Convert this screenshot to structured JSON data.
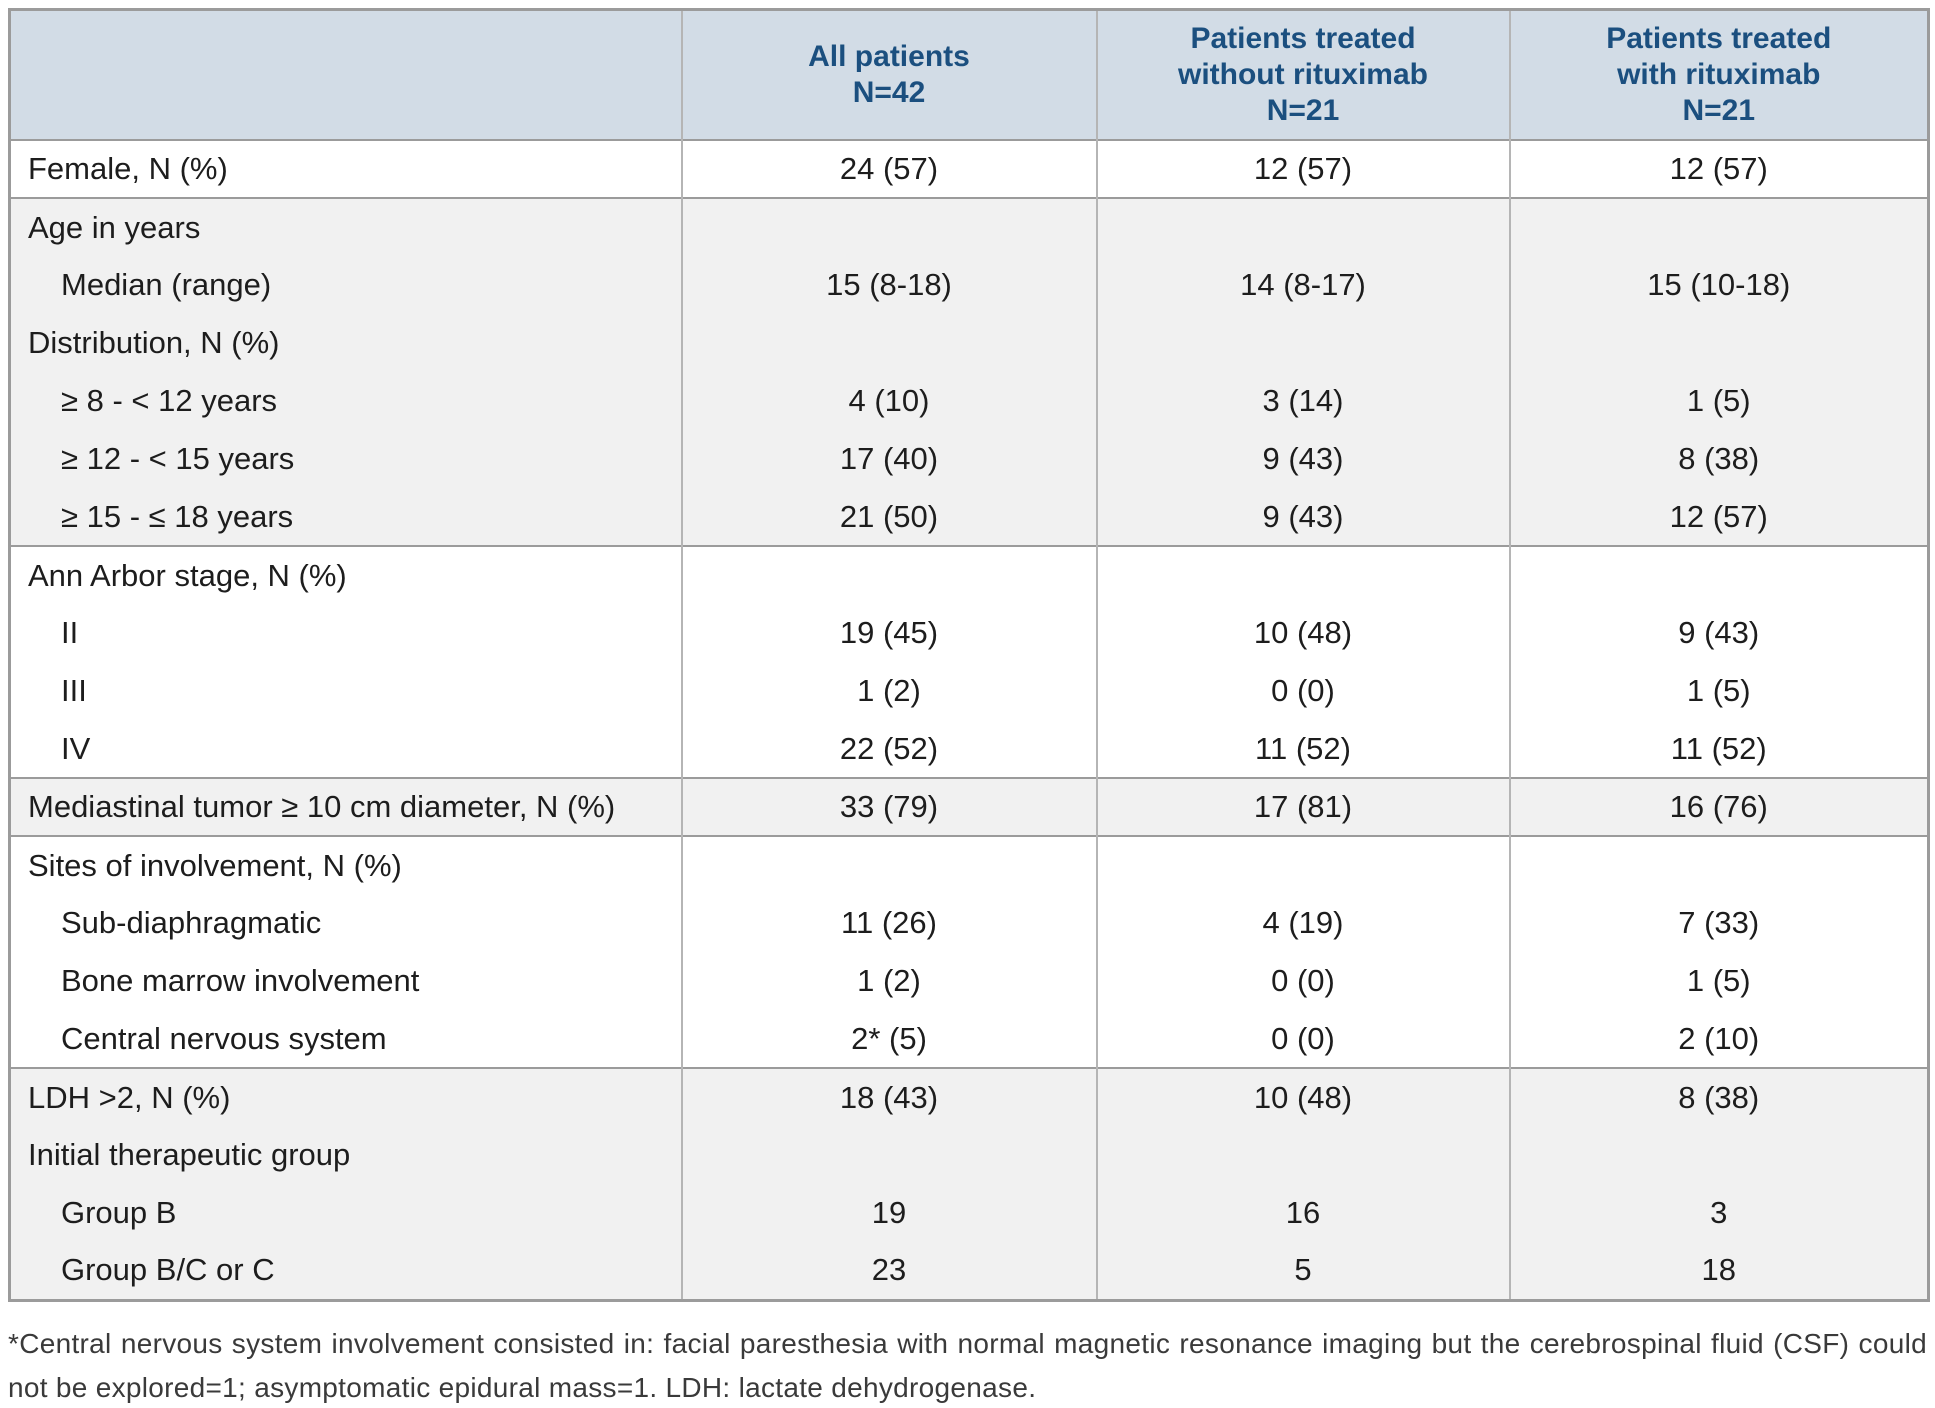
{
  "colors": {
    "header_bg": "#d2dce6",
    "header_text": "#1b4f7f",
    "row_alt_bg": "#f1f1f1",
    "section_border": "#9b9b9b",
    "column_border": "#b5b5b5"
  },
  "table": {
    "columns": [
      {
        "lines": []
      },
      {
        "lines": [
          "All patients",
          "N=42"
        ]
      },
      {
        "lines": [
          "Patients treated",
          "without rituximab",
          "N=21"
        ]
      },
      {
        "lines": [
          "Patients treated",
          "with rituximab",
          "N=21"
        ]
      }
    ],
    "sections": [
      {
        "bg": "white",
        "rows": [
          {
            "label": "Female, N (%)",
            "indent": 0,
            "values": [
              "24 (57)",
              "12 (57)",
              "12 (57)"
            ]
          }
        ]
      },
      {
        "bg": "gray",
        "rows": [
          {
            "label": "Age in years",
            "indent": 0,
            "values": [
              "",
              "",
              ""
            ]
          },
          {
            "label": "Median (range)",
            "indent": 1,
            "values": [
              "15 (8-18)",
              "14 (8-17)",
              "15 (10-18)"
            ]
          },
          {
            "label": "Distribution, N (%)",
            "indent": 0,
            "values": [
              "",
              "",
              ""
            ]
          },
          {
            "label": "≥ 8 - < 12 years",
            "indent": 1,
            "values": [
              "4 (10)",
              "3 (14)",
              "1 (5)"
            ]
          },
          {
            "label": "≥ 12 - < 15 years",
            "indent": 1,
            "values": [
              "17 (40)",
              "9 (43)",
              "8 (38)"
            ]
          },
          {
            "label": "≥ 15 - ≤ 18 years",
            "indent": 1,
            "values": [
              "21 (50)",
              "9 (43)",
              "12 (57)"
            ]
          }
        ]
      },
      {
        "bg": "white",
        "rows": [
          {
            "label": "Ann Arbor stage, N (%)",
            "indent": 0,
            "values": [
              "",
              "",
              ""
            ]
          },
          {
            "label": "II",
            "indent": 1,
            "values": [
              "19 (45)",
              "10 (48)",
              "9 (43)"
            ]
          },
          {
            "label": "III",
            "indent": 1,
            "values": [
              "1 (2)",
              "0 (0)",
              "1 (5)"
            ]
          },
          {
            "label": "IV",
            "indent": 1,
            "values": [
              "22 (52)",
              "11 (52)",
              "11 (52)"
            ]
          }
        ]
      },
      {
        "bg": "gray",
        "rows": [
          {
            "label": "Mediastinal tumor ≥ 10 cm diameter, N (%)",
            "indent": 0,
            "values": [
              "33 (79)",
              "17 (81)",
              "16 (76)"
            ]
          }
        ]
      },
      {
        "bg": "white",
        "rows": [
          {
            "label": "Sites of involvement, N (%)",
            "indent": 0,
            "values": [
              "",
              "",
              ""
            ]
          },
          {
            "label": "Sub-diaphragmatic",
            "indent": 1,
            "values": [
              "11 (26)",
              "4 (19)",
              "7 (33)"
            ]
          },
          {
            "label": "Bone marrow involvement",
            "indent": 1,
            "values": [
              "1 (2)",
              "0 (0)",
              "1 (5)"
            ]
          },
          {
            "label": "Central nervous system",
            "indent": 1,
            "values": [
              "2* (5)",
              "0 (0)",
              "2 (10)"
            ]
          }
        ]
      },
      {
        "bg": "gray",
        "rows": [
          {
            "label": "LDH >2, N (%)",
            "indent": 0,
            "values": [
              "18 (43)",
              "10 (48)",
              "8 (38)"
            ]
          },
          {
            "label": "Initial therapeutic group",
            "indent": 0,
            "values": [
              "",
              "",
              ""
            ]
          },
          {
            "label": "Group B",
            "indent": 1,
            "values": [
              "19",
              "16",
              "3"
            ]
          },
          {
            "label": "Group B/C or C",
            "indent": 1,
            "values": [
              "23",
              "5",
              "18"
            ]
          }
        ]
      }
    ]
  },
  "footnote": {
    "text": "*Central nervous system involvement consisted in: facial paresthesia with normal magnetic resonance imaging but the cerebrospinal fluid (CSF) could not be explored=1; asymptomatic epidural mass=1. LDH: lactate dehydrogenase."
  }
}
